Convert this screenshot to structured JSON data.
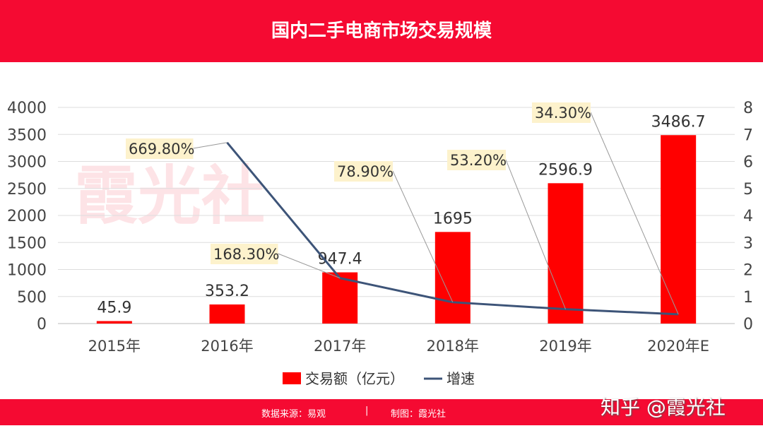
{
  "header": {
    "title": "国内二手电商市场交易规模"
  },
  "footer": {
    "source": "数据来源：易观",
    "separator": "|",
    "made_by": "制图：霞光社",
    "watermark": "知乎 @霞光社"
  },
  "colors": {
    "bar": "#ff0000",
    "line": "#3d5478",
    "banner": "#f50a32",
    "label_bg": "#fdf2cc"
  },
  "chart_data": {
    "type": "bar+line",
    "title": "国内二手电商市场交易规模",
    "watermark": "霞光社",
    "categories": [
      "2015年",
      "2016年",
      "2017年",
      "2018年",
      "2019年",
      "2020年E"
    ],
    "series": [
      {
        "name": "交易额（亿元）",
        "type": "bar",
        "axis": "left",
        "values": [
          45.9,
          353.2,
          947.4,
          1695,
          2596.9,
          3486.7
        ],
        "labels": [
          "45.9",
          "353.2",
          "947.4",
          "1695",
          "2596.9",
          "3486.7"
        ]
      },
      {
        "name": "增速",
        "type": "line",
        "axis": "right",
        "values": [
          null,
          6.698,
          1.683,
          0.789,
          0.532,
          0.343
        ],
        "labels": [
          "",
          "669.80%",
          "168.30%",
          "78.90%",
          "53.20%",
          "34.30%"
        ]
      }
    ],
    "y_left": {
      "range": [
        0,
        4000
      ],
      "ticks": [
        0,
        500,
        1000,
        1500,
        2000,
        2500,
        3000,
        3500,
        4000
      ]
    },
    "y_right": {
      "range": [
        0,
        8
      ],
      "ticks": [
        0,
        1,
        2,
        3,
        4,
        5,
        6,
        7,
        8
      ]
    },
    "grid": true,
    "legend": "bottom"
  }
}
